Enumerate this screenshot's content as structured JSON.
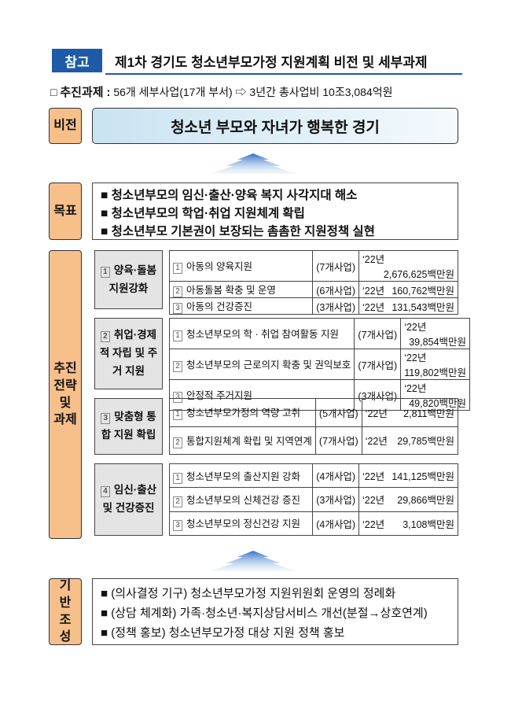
{
  "header": {
    "tag": "참고",
    "title": "제1차 경기도 청소년부모가정 지원계획 비전 및 세부과제"
  },
  "summary": {
    "checkbox": "□",
    "label": "추진과제",
    "colon": ":",
    "text": "56개 세부사업(17개 부서) ⇨ 3년간 총사업비 10조3,084억원"
  },
  "vision": {
    "label": "비전",
    "text": "청소년 부모와 자녀가 행복한 경기"
  },
  "goals": {
    "label": "목표",
    "items": [
      "청소년부모의 임신·출산·양육 복지 사각지대 해소",
      "청소년부모의 학업·취업 지원체계 확립",
      "청소년부모 기본권이 보장되는 촘촘한 지원정책 실현"
    ]
  },
  "strategy": {
    "label": "추진 전략 및 과제",
    "groups": [
      {
        "num": "1",
        "name": "양육·돌봄 지원강화",
        "rows": [
          {
            "num": "1",
            "name": "아동의 양육지원",
            "count": "(7개사업)",
            "year": "‘22년",
            "amount": "2,676,625백만원"
          },
          {
            "num": "2",
            "name": "아동돌봄 확충 및 운영",
            "count": "(6개사업)",
            "year": "‘22년",
            "amount": "160,762백만원"
          },
          {
            "num": "3",
            "name": "아동의 건강증진",
            "count": "(3개사업)",
            "year": "‘22년",
            "amount": "131,543백만원"
          }
        ]
      },
      {
        "num": "2",
        "name": "취업·경제적 자립 및 주거 지원",
        "rows": [
          {
            "num": "1",
            "name": "청소년부모의 학 · 취업 참여활동 지원",
            "count": "(7개사업)",
            "year": "‘22년",
            "amount": "39,854백만원"
          },
          {
            "num": "2",
            "name": "청소년부모의 근로의지 확충 및 권익보호",
            "count": "(7개사업)",
            "year": "‘22년",
            "amount": "119,802백만원"
          },
          {
            "num": "3",
            "name": "안정적 주거지원",
            "count": "(3개사업)",
            "year": "‘22년",
            "amount": "49,820백만원"
          }
        ]
      },
      {
        "num": "3",
        "name": "맞춤형 통합 지원 확립",
        "rows": [
          {
            "num": "1",
            "name": "청소년부모가정의 역량 고취",
            "count": "(5개사업)",
            "year": "‘22년",
            "amount": "2,811백만원"
          },
          {
            "num": "2",
            "name": "통합지원체계 확립 및 지역연계",
            "count": "(7개사업)",
            "year": "‘22년",
            "amount": "29,785백만원"
          }
        ]
      },
      {
        "num": "4",
        "name": "임신·출산 및 건강증진",
        "rows": [
          {
            "num": "1",
            "name": "청소년부모의 출산지원 강화",
            "count": "(4개사업)",
            "year": "‘22년",
            "amount": "141,125백만원"
          },
          {
            "num": "2",
            "name": "청소년부모의 신체건강 증진",
            "count": "(3개사업)",
            "year": "‘22년",
            "amount": "29,866백만원"
          },
          {
            "num": "3",
            "name": "청소년부모의 정신건강 지원",
            "count": "(4개사업)",
            "year": "‘22년",
            "amount": "3,108백만원"
          }
        ]
      }
    ]
  },
  "foundation": {
    "label": "기반 조성",
    "items": [
      "(의사결정 기구) 청소년부모가정 지원위원회 운영의 정례화",
      "(상담 체계화) 가족·청소년·복지상담서비스 개선(분절→상호연계)",
      "(정책 홍보) 청소년부모가정 대상 지원 정책 홍보"
    ]
  },
  "colors": {
    "accent": "#1f5aa8",
    "label_bg": "#f7bf8a",
    "group_bg": "#e4e4e4",
    "vision_bg": "#c9e3f1"
  }
}
